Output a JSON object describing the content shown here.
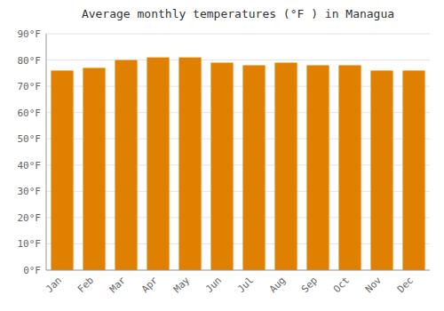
{
  "chart_data": {
    "type": "bar",
    "title": "Average monthly temperatures (°F ) in Managua",
    "categories": [
      "Jan",
      "Feb",
      "Mar",
      "Apr",
      "May",
      "Jun",
      "Jul",
      "Aug",
      "Sep",
      "Oct",
      "Nov",
      "Dec"
    ],
    "values": [
      76,
      77,
      80,
      81,
      81,
      79,
      78,
      79,
      78,
      78,
      76,
      76
    ],
    "color": "#E08000",
    "ylim": [
      0,
      90
    ],
    "yticks": [
      {
        "value": 0,
        "label": "0°F"
      },
      {
        "value": 10,
        "label": "10°F"
      },
      {
        "value": 20,
        "label": "20°F"
      },
      {
        "value": 30,
        "label": "30°F"
      },
      {
        "value": 40,
        "label": "40°F"
      },
      {
        "value": 50,
        "label": "50°F"
      },
      {
        "value": 60,
        "label": "60°F"
      },
      {
        "value": 70,
        "label": "70°F"
      },
      {
        "value": 80,
        "label": "80°F"
      },
      {
        "value": 90,
        "label": "90°F"
      }
    ],
    "grid": true
  }
}
